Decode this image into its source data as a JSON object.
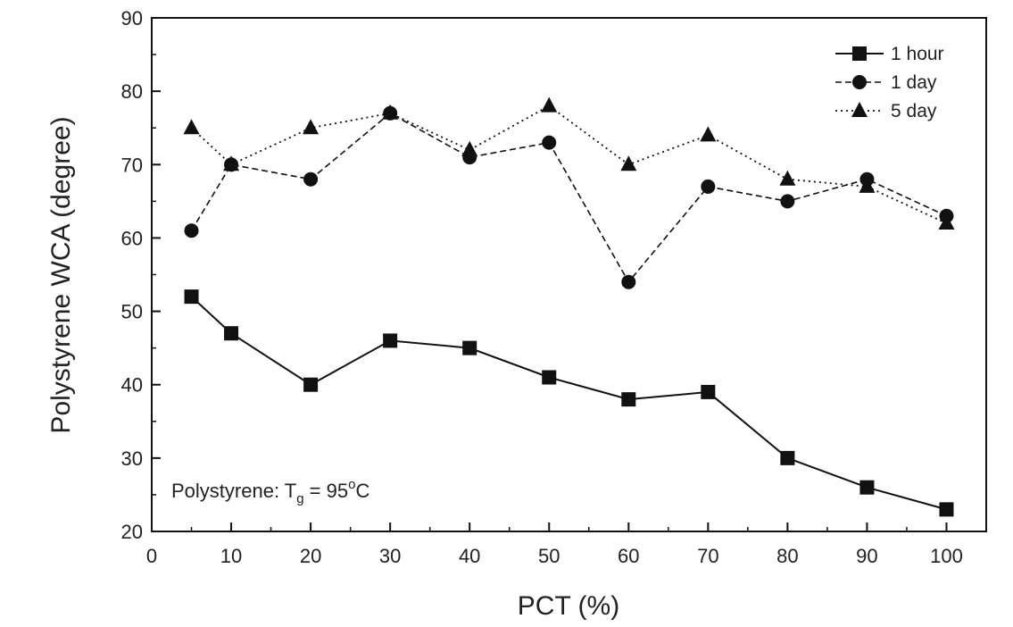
{
  "chart_data": {
    "type": "line",
    "title": "",
    "xlabel": "PCT (%)",
    "ylabel": "Polystyrene WCA (degree)",
    "xlim": [
      0,
      105
    ],
    "ylim": [
      20,
      90
    ],
    "xticks": [
      0,
      10,
      20,
      30,
      40,
      50,
      60,
      70,
      80,
      90,
      100
    ],
    "yticks": [
      20,
      30,
      40,
      50,
      60,
      70,
      80,
      90
    ],
    "x": [
      5,
      10,
      20,
      30,
      40,
      50,
      60,
      70,
      80,
      90,
      100
    ],
    "series": [
      {
        "name": "1 hour",
        "marker": "square",
        "line": "solid",
        "values": [
          52,
          47,
          40,
          46,
          45,
          41,
          38,
          39,
          30,
          26,
          23
        ]
      },
      {
        "name": "1 day",
        "marker": "circle",
        "line": "dashed",
        "values": [
          61,
          70,
          68,
          77,
          71,
          73,
          54,
          67,
          65,
          68,
          63
        ]
      },
      {
        "name": "5 day",
        "marker": "triangle",
        "line": "dotted",
        "values": [
          75,
          70,
          75,
          77,
          72,
          78,
          70,
          74,
          68,
          67,
          62
        ]
      }
    ],
    "annotation": {
      "prefix": "Polystyrene: T",
      "subscript": "g",
      "equals": " = 95",
      "superscript": "o",
      "unit": "C"
    },
    "legend_position": "top-right",
    "grid": false
  }
}
